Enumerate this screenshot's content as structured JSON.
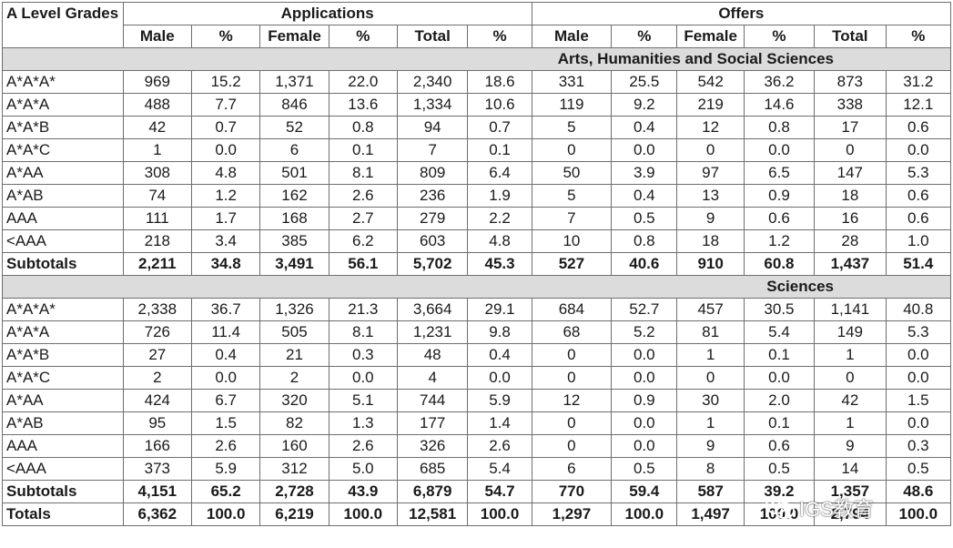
{
  "header": {
    "grade_label": "A Level Grades",
    "applications": "Applications",
    "offers": "Offers",
    "columns": [
      "Male",
      "%",
      "Female",
      "%",
      "Total",
      "%",
      "Male",
      "%",
      "Female",
      "%",
      "Total",
      "%"
    ]
  },
  "sections": [
    {
      "title": "Arts, Humanities and Social Sciences",
      "rows": [
        [
          "A*A*A*",
          "969",
          "15.2",
          "1,371",
          "22.0",
          "2,340",
          "18.6",
          "331",
          "25.5",
          "542",
          "36.2",
          "873",
          "31.2"
        ],
        [
          "A*A*A",
          "488",
          "7.7",
          "846",
          "13.6",
          "1,334",
          "10.6",
          "119",
          "9.2",
          "219",
          "14.6",
          "338",
          "12.1"
        ],
        [
          "A*A*B",
          "42",
          "0.7",
          "52",
          "0.8",
          "94",
          "0.7",
          "5",
          "0.4",
          "12",
          "0.8",
          "17",
          "0.6"
        ],
        [
          "A*A*C",
          "1",
          "0.0",
          "6",
          "0.1",
          "7",
          "0.1",
          "0",
          "0.0",
          "0",
          "0.0",
          "0",
          "0.0"
        ],
        [
          "A*AA",
          "308",
          "4.8",
          "501",
          "8.1",
          "809",
          "6.4",
          "50",
          "3.9",
          "97",
          "6.5",
          "147",
          "5.3"
        ],
        [
          "A*AB",
          "74",
          "1.2",
          "162",
          "2.6",
          "236",
          "1.9",
          "5",
          "0.4",
          "13",
          "0.9",
          "18",
          "0.6"
        ],
        [
          "AAA",
          "111",
          "1.7",
          "168",
          "2.7",
          "279",
          "2.2",
          "7",
          "0.5",
          "9",
          "0.6",
          "16",
          "0.6"
        ],
        [
          "<AAA",
          "218",
          "3.4",
          "385",
          "6.2",
          "603",
          "4.8",
          "10",
          "0.8",
          "18",
          "1.2",
          "28",
          "1.0"
        ]
      ],
      "subtotal": [
        "Subtotals",
        "2,211",
        "34.8",
        "3,491",
        "56.1",
        "5,702",
        "45.3",
        "527",
        "40.6",
        "910",
        "60.8",
        "1,437",
        "51.4"
      ]
    },
    {
      "title": "Sciences",
      "rows": [
        [
          "A*A*A*",
          "2,338",
          "36.7",
          "1,326",
          "21.3",
          "3,664",
          "29.1",
          "684",
          "52.7",
          "457",
          "30.5",
          "1,141",
          "40.8"
        ],
        [
          "A*A*A",
          "726",
          "11.4",
          "505",
          "8.1",
          "1,231",
          "9.8",
          "68",
          "5.2",
          "81",
          "5.4",
          "149",
          "5.3"
        ],
        [
          "A*A*B",
          "27",
          "0.4",
          "21",
          "0.3",
          "48",
          "0.4",
          "0",
          "0.0",
          "1",
          "0.1",
          "1",
          "0.0"
        ],
        [
          "A*A*C",
          "2",
          "0.0",
          "2",
          "0.0",
          "4",
          "0.0",
          "0",
          "0.0",
          "0",
          "0.0",
          "0",
          "0.0"
        ],
        [
          "A*AA",
          "424",
          "6.7",
          "320",
          "5.1",
          "744",
          "5.9",
          "12",
          "0.9",
          "30",
          "2.0",
          "42",
          "1.5"
        ],
        [
          "A*AB",
          "95",
          "1.5",
          "82",
          "1.3",
          "177",
          "1.4",
          "0",
          "0.0",
          "1",
          "0.1",
          "1",
          "0.0"
        ],
        [
          "AAA",
          "166",
          "2.6",
          "160",
          "2.6",
          "326",
          "2.6",
          "0",
          "0.0",
          "9",
          "0.6",
          "9",
          "0.3"
        ],
        [
          "<AAA",
          "373",
          "5.9",
          "312",
          "5.0",
          "685",
          "5.4",
          "6",
          "0.5",
          "8",
          "0.5",
          "14",
          "0.5"
        ]
      ],
      "subtotal": [
        "Subtotals",
        "4,151",
        "65.2",
        "2,728",
        "43.9",
        "6,879",
        "54.7",
        "770",
        "59.4",
        "587",
        "39.2",
        "1,357",
        "48.6"
      ]
    }
  ],
  "totals": [
    "Totals",
    "6,362",
    "100.0",
    "6,219",
    "100.0",
    "12,581",
    "100.0",
    "1,297",
    "100.0",
    "1,497",
    "100.0",
    "2,794",
    "100.0"
  ],
  "watermark": {
    "text": "IGS教育",
    "icon": "wechat-icon"
  }
}
